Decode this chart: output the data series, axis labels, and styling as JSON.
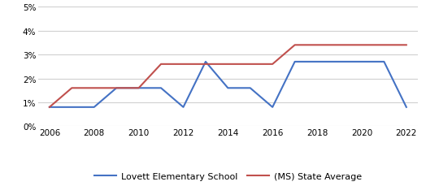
{
  "lovett_x": [
    2006,
    2007,
    2008,
    2009,
    2010,
    2011,
    2012,
    2013,
    2014,
    2015,
    2016,
    2017,
    2018,
    2019,
    2020,
    2021,
    2022
  ],
  "lovett_y": [
    0.008,
    0.008,
    0.008,
    0.016,
    0.016,
    0.016,
    0.008,
    0.027,
    0.016,
    0.016,
    0.008,
    0.027,
    0.027,
    0.027,
    0.027,
    0.027,
    0.008
  ],
  "state_x": [
    2006,
    2007,
    2008,
    2009,
    2010,
    2011,
    2012,
    2013,
    2014,
    2015,
    2016,
    2017,
    2018,
    2019,
    2020,
    2021,
    2022
  ],
  "state_y": [
    0.008,
    0.016,
    0.016,
    0.016,
    0.016,
    0.026,
    0.026,
    0.026,
    0.026,
    0.026,
    0.026,
    0.034,
    0.034,
    0.034,
    0.034,
    0.034,
    0.034
  ],
  "lovett_color": "#4472c4",
  "state_color": "#c0504d",
  "lovett_label": "Lovett Elementary School",
  "state_label": "(MS) State Average",
  "xlim": [
    2005.5,
    2022.5
  ],
  "ylim": [
    0,
    0.05
  ],
  "yticks": [
    0,
    0.01,
    0.02,
    0.03,
    0.04,
    0.05
  ],
  "xticks": [
    2006,
    2008,
    2010,
    2012,
    2014,
    2016,
    2018,
    2020,
    2022
  ],
  "background_color": "#ffffff",
  "grid_color": "#d0d0d0",
  "line_width": 1.5
}
